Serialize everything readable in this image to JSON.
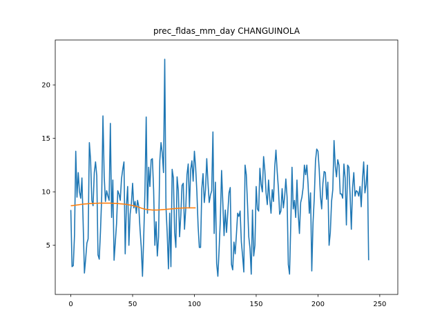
{
  "chart_data": {
    "type": "line",
    "title": "prec_fldas_mm_day CHANGUINOLA",
    "xlabel": "",
    "ylabel": "",
    "xlim": [
      -12.6,
      264.6
    ],
    "ylim": [
      0.4,
      24.2
    ],
    "xticks": [
      0,
      50,
      100,
      150,
      200,
      250
    ],
    "yticks": [
      5,
      10,
      15,
      20
    ],
    "grid": false,
    "legend": "none",
    "series": [
      {
        "color": "#1f77b4",
        "values": [
          8.3,
          3.0,
          3.1,
          6.0,
          13.8,
          9.5,
          11.8,
          10.0,
          9.4,
          11.3,
          7.0,
          2.4,
          3.7,
          5.2,
          5.6,
          14.6,
          13.0,
          9.2,
          8.7,
          11.8,
          12.8,
          11.5,
          4.1,
          3.7,
          6.3,
          9.6,
          17.1,
          11.5,
          9.1,
          10.1,
          9.6,
          9.2,
          16.4,
          7.6,
          11.1,
          3.6,
          5.3,
          7.0,
          10.1,
          9.8,
          9.2,
          11.2,
          12.1,
          12.8,
          4.2,
          8.7,
          10.5,
          5.0,
          7.9,
          8.9,
          10.8,
          8.5,
          9.1,
          8.0,
          9.2,
          8.6,
          6.5,
          4.8,
          2.1,
          5.8,
          10.1,
          17.0,
          8.0,
          12.3,
          10.5,
          13.0,
          13.1,
          10.2,
          5.0,
          7.2,
          4.0,
          5.8,
          12.9,
          14.6,
          13.6,
          11.8,
          22.4,
          8.6,
          6.1,
          2.8,
          8.0,
          3.0,
          12.1,
          11.3,
          6.2,
          4.8,
          11.4,
          10.1,
          5.8,
          7.8,
          10.6,
          10.8,
          6.5,
          8.4,
          11.6,
          12.6,
          8.5,
          12.1,
          12.9,
          11.0,
          13.8,
          12.3,
          10.0,
          6.8,
          4.8,
          4.8,
          10.3,
          11.7,
          9.0,
          10.2,
          13.1,
          10.8,
          9.0,
          9.7,
          10.1,
          15.6,
          6.1,
          10.9,
          3.3,
          2.1,
          4.6,
          7.4,
          12.0,
          9.0,
          5.9,
          8.3,
          6.2,
          8.0,
          9.9,
          10.4,
          3.2,
          2.7,
          5.3,
          4.2,
          6.0,
          8.0,
          7.7,
          8.2,
          5.3,
          4.0,
          2.5,
          12.5,
          11.6,
          8.8,
          5.8,
          4.7,
          2.3,
          8.3,
          4.0,
          5.0,
          10.5,
          8.4,
          8.2,
          12.2,
          10.7,
          10.0,
          13.3,
          12.0,
          9.9,
          8.8,
          11.1,
          9.3,
          8.0,
          10.2,
          9.1,
          12.3,
          13.9,
          11.9,
          10.3,
          7.9,
          8.2,
          10.3,
          8.5,
          9.5,
          11.2,
          9.5,
          3.2,
          2.3,
          7.0,
          12.3,
          8.4,
          9.2,
          7.6,
          11.1,
          8.0,
          6.1,
          9.0,
          9.5,
          10.4,
          12.5,
          11.6,
          12.5,
          10.7,
          8.0,
          9.9,
          2.6,
          7.1,
          9.4,
          12.9,
          14.0,
          13.8,
          12.1,
          9.6,
          8.4,
          10.8,
          11.9,
          11.8,
          9.3,
          10.9,
          5.0,
          6.2,
          9.1,
          10.2,
          14.8,
          12.4,
          11.4,
          13.0,
          12.5,
          9.8,
          9.8,
          9.4,
          12.6,
          11.3,
          6.9,
          12.5,
          12.3,
          9.7,
          6.5,
          10.4,
          11.8,
          9.6,
          10.1,
          10.0,
          9.6,
          10.5,
          8.6,
          11.1,
          12.8,
          9.9,
          10.7,
          12.5,
          3.6
        ]
      },
      {
        "color": "#ff7f0e",
        "values": [
          8.7,
          8.7,
          8.72,
          8.74,
          8.75,
          8.77,
          8.78,
          8.8,
          8.82,
          8.83,
          8.85,
          8.86,
          8.87,
          8.88,
          8.89,
          8.9,
          8.9,
          8.91,
          8.92,
          8.92,
          8.93,
          8.93,
          8.93,
          8.94,
          8.94,
          8.94,
          8.94,
          8.94,
          8.94,
          8.94,
          8.94,
          8.94,
          8.94,
          8.93,
          8.93,
          8.92,
          8.92,
          8.91,
          8.9,
          8.89,
          8.88,
          8.87,
          8.86,
          8.85,
          8.84,
          8.82,
          8.8,
          8.78,
          8.76,
          8.74,
          8.72,
          8.69,
          8.66,
          8.63,
          8.6,
          8.56,
          8.52,
          8.48,
          8.44,
          8.41,
          8.38,
          8.36,
          8.34,
          8.33,
          8.32,
          8.31,
          8.3,
          8.3,
          8.3,
          8.3,
          8.3,
          8.31,
          8.31,
          8.32,
          8.33,
          8.34,
          8.35,
          8.36,
          8.37,
          8.38,
          8.39,
          8.4,
          8.41,
          8.42,
          8.43,
          8.44,
          8.45,
          8.46,
          8.47,
          8.47,
          8.48,
          8.49,
          8.49,
          8.5,
          8.5,
          8.5,
          8.5,
          8.5,
          8.5,
          8.5,
          8.5,
          8.5
        ]
      }
    ]
  }
}
